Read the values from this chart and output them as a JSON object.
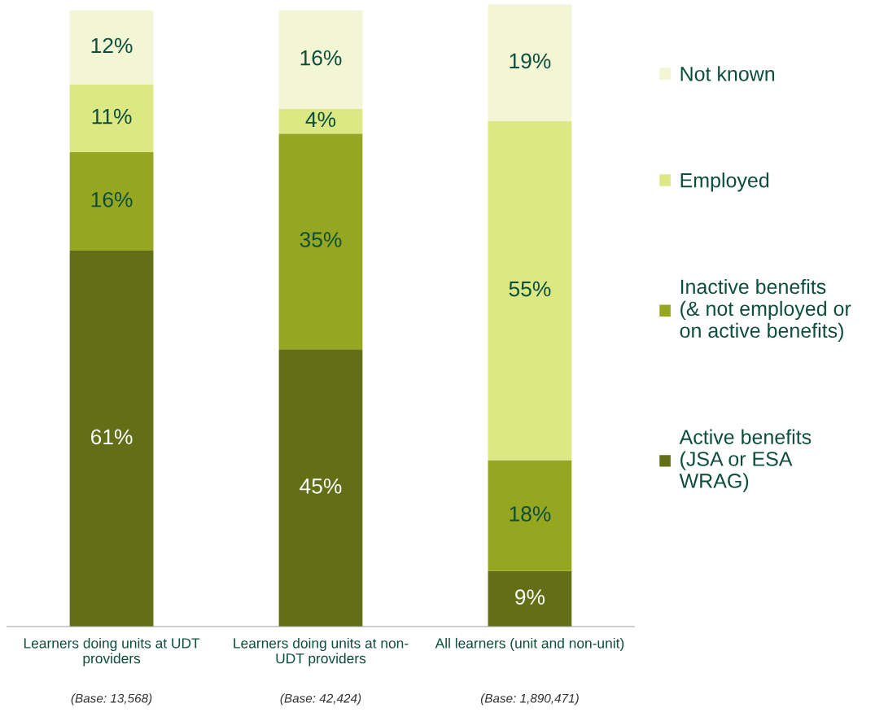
{
  "chart_data": {
    "type": "bar",
    "stacked": true,
    "legend": "right",
    "grid": false,
    "categories": [
      "Learners doing units at UDT\nproviders",
      "Learners doing units at non-\nUDT providers",
      "All learners (unit and non-unit)"
    ],
    "series": [
      {
        "name": "Active benefits\n(JSA or ESA\nWRAG)",
        "color": "#636f16",
        "values": [
          61,
          45,
          9
        ],
        "value_labels": [
          "61%",
          "45%",
          "9%"
        ]
      },
      {
        "name": "Inactive benefits\n(& not employed or\non active benefits)",
        "color": "#95a720",
        "values": [
          16,
          35,
          18
        ],
        "value_labels": [
          "16%",
          "35%",
          "18%"
        ]
      },
      {
        "name": "Employed",
        "color": "#dbe884",
        "values": [
          11,
          4,
          55
        ],
        "value_labels": [
          "11%",
          "4%",
          "55%"
        ]
      },
      {
        "name": "Not known",
        "color": "#f2f6d5",
        "values": [
          12,
          16,
          19
        ],
        "value_labels": [
          "12%",
          "16%",
          "19%"
        ]
      }
    ],
    "annotations": [
      "(Base: 13,568)",
      "(Base: 42,424)",
      "(Base: 1,890,471)"
    ]
  }
}
